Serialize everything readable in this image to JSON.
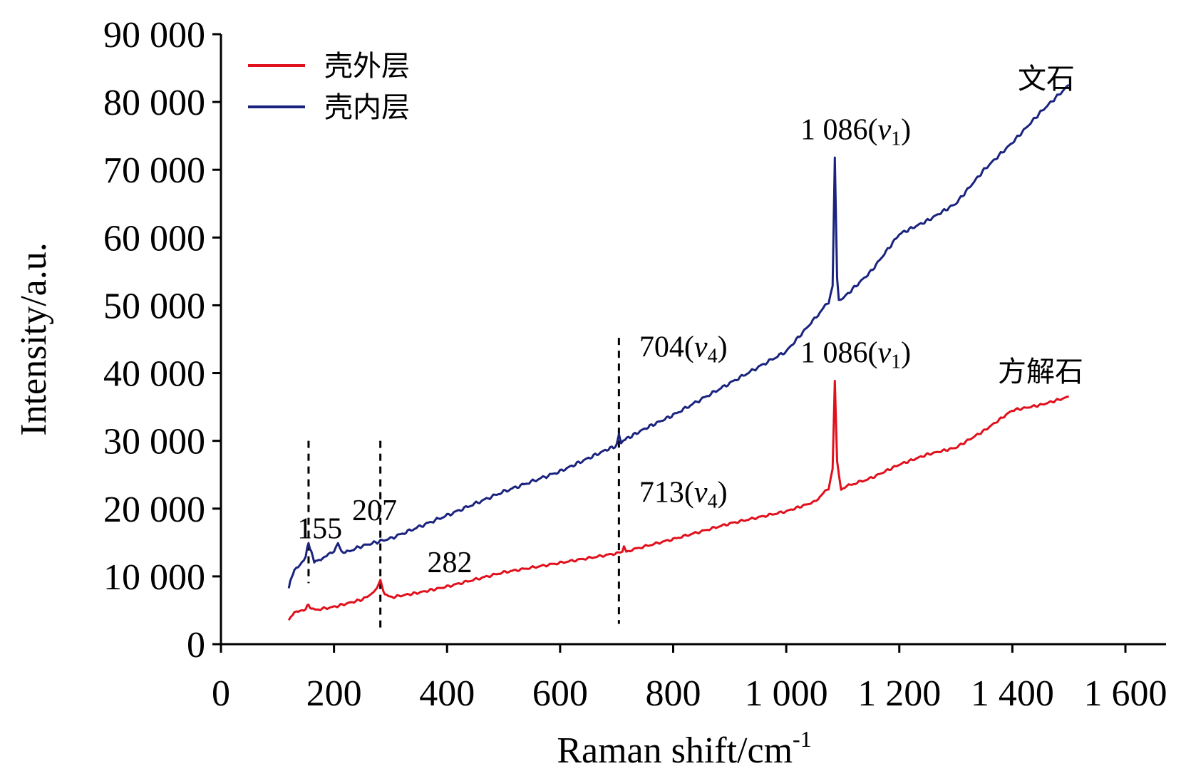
{
  "chart_data": {
    "type": "line",
    "xlabel": "Raman shift/cm",
    "xlabel_sup": "-1",
    "ylabel": "Intensity/a.u.",
    "xlim": [
      0,
      1600
    ],
    "ylim": [
      0,
      90000
    ],
    "x_ticks": [
      0,
      200,
      400,
      600,
      800,
      1000,
      1200,
      1400,
      1600
    ],
    "x_tick_labels": [
      "0",
      "200",
      "400",
      "600",
      "800",
      "1 000",
      "1 200",
      "1 400",
      "1 600"
    ],
    "y_ticks": [
      0,
      10000,
      20000,
      30000,
      40000,
      50000,
      60000,
      70000,
      80000,
      90000
    ],
    "y_tick_labels": [
      "0",
      "10 000",
      "20 000",
      "30 000",
      "40 000",
      "50 000",
      "60 000",
      "70 000",
      "80 000",
      "90 000"
    ],
    "legend": {
      "position": "top-left"
    },
    "series": [
      {
        "name": "壳外层",
        "color": "#e0101c",
        "mineral_label": "方解石",
        "x": [
          120,
          130,
          140,
          150,
          155,
          160,
          170,
          200,
          250,
          270,
          282,
          290,
          300,
          350,
          400,
          500,
          600,
          700,
          710,
          713,
          717,
          730,
          800,
          900,
          1000,
          1050,
          1075,
          1082,
          1086,
          1090,
          1097,
          1110,
          1150,
          1200,
          1250,
          1300,
          1350,
          1400,
          1450,
          1500
        ],
        "y": [
          3500,
          4600,
          5000,
          5200,
          5900,
          5100,
          5100,
          5500,
          6600,
          7600,
          9300,
          7300,
          6900,
          7600,
          8500,
          10600,
          12000,
          13400,
          13500,
          14500,
          13700,
          14000,
          15500,
          17800,
          19600,
          21000,
          23000,
          26000,
          39000,
          27000,
          22900,
          23400,
          24500,
          26500,
          28000,
          29000,
          31500,
          34500,
          35300,
          36500
        ]
      },
      {
        "name": "壳内层",
        "color": "#1a237e",
        "mineral_label": "文石",
        "x": [
          120,
          125,
          130,
          140,
          150,
          155,
          160,
          165,
          170,
          180,
          190,
          200,
          207,
          213,
          220,
          250,
          300,
          400,
          500,
          600,
          680,
          700,
          704,
          708,
          715,
          750,
          800,
          900,
          1000,
          1050,
          1075,
          1082,
          1086,
          1090,
          1093,
          1100,
          1150,
          1200,
          1250,
          1300,
          1350,
          1400,
          1450,
          1500
        ],
        "y": [
          8200,
          10000,
          10800,
          11800,
          13000,
          15000,
          13500,
          12200,
          12300,
          12800,
          13200,
          13500,
          15000,
          13800,
          13500,
          14500,
          15600,
          19000,
          22500,
          25500,
          28600,
          29300,
          31000,
          29700,
          30200,
          31800,
          33800,
          38500,
          43200,
          48000,
          50500,
          53000,
          72000,
          54000,
          51000,
          51000,
          55000,
          60500,
          62500,
          65000,
          70000,
          74000,
          78500,
          82500
        ]
      }
    ],
    "reference_lines": [
      155,
      282,
      704
    ],
    "annotations": [
      {
        "text": "155",
        "x": 135,
        "y": 15600
      },
      {
        "text": "207",
        "x": 232,
        "y": 18300
      },
      {
        "text": "282",
        "x": 365,
        "y": 10600
      },
      {
        "text": "704(",
        "sym": "v",
        "sub": "4",
        "close": ")",
        "x": 740,
        "y": 42400
      },
      {
        "text": "713(",
        "sym": "v",
        "sub": "4",
        "close": ")",
        "x": 740,
        "y": 21000
      },
      {
        "text": "1 086(",
        "sym": "v",
        "sub": "1",
        "close": ")",
        "x": 1025,
        "y": 74500
      },
      {
        "text": "1 086(",
        "sym": "v",
        "sub": "1",
        "close": ")",
        "x": 1025,
        "y": 41600
      }
    ]
  }
}
